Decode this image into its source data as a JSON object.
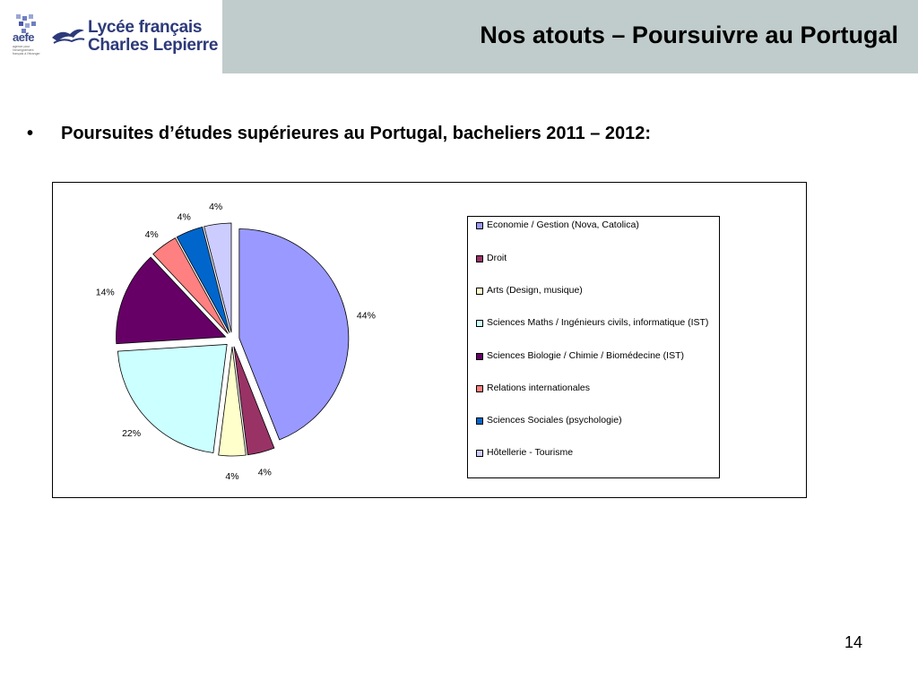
{
  "header": {
    "logo_aefe": "aefe",
    "logo_aefe_small": "agence pour l'enseignement français à l'étranger",
    "logo_lycee_line1": "Lycée français",
    "logo_lycee_line2": "Charles Lepierre",
    "title": "Nos atouts – Poursuivre au Portugal",
    "background_color": "#c0cccb"
  },
  "content": {
    "bullet": "•",
    "subtitle": "Poursuites d’études supérieures au Portugal, bacheliers 2011 – 2012:"
  },
  "chart_data": {
    "type": "pie",
    "title": "",
    "legend_position": "right",
    "exploded": true,
    "slices": [
      {
        "label": "Economie / Gestion (Nova, Catolica)",
        "value": 44,
        "display": "44%",
        "color": "#9999ff"
      },
      {
        "label": "Droit",
        "value": 4,
        "display": "4%",
        "color": "#993366"
      },
      {
        "label": "Arts (Design, musique)",
        "value": 4,
        "display": "4%",
        "color": "#ffffcc"
      },
      {
        "label": "Sciences Maths / Ingénieurs civils, informatique (IST)",
        "value": 22,
        "display": "22%",
        "color": "#ccffff"
      },
      {
        "label": "Sciences Biologie / Chimie / Biomédecine (IST)",
        "value": 14,
        "display": "14%",
        "color": "#660066"
      },
      {
        "label": "Relations internationales",
        "value": 4,
        "display": "4%",
        "color": "#ff8080"
      },
      {
        "label": "Sciences Sociales (psychologie)",
        "value": 4,
        "display": "4%",
        "color": "#0066cc"
      },
      {
        "label": "Hôtellerie - Tourisme",
        "value": 4,
        "display": "4%",
        "color": "#ccccff"
      }
    ]
  },
  "footer": {
    "page_number": "14"
  }
}
